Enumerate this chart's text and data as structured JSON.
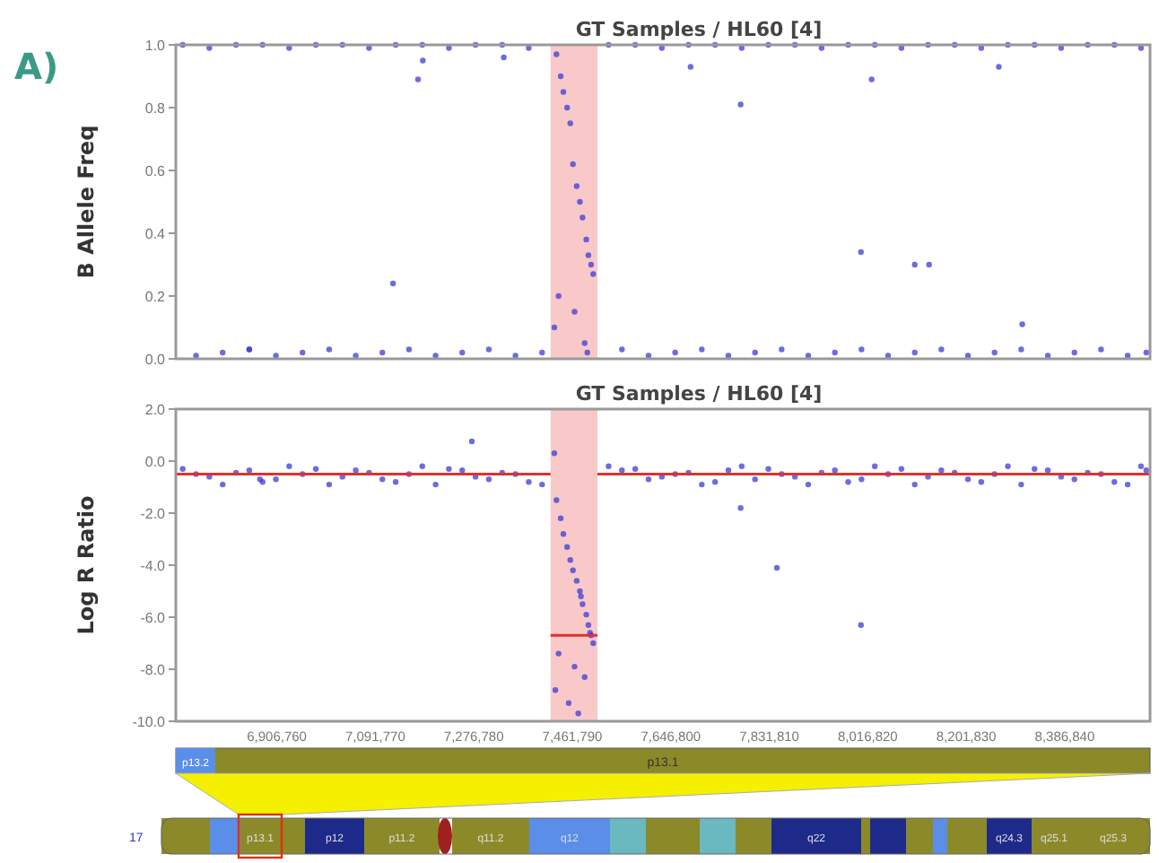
{
  "chart_data": [
    {
      "type": "scatter",
      "title": "GT Samples / HL60 [4]",
      "ylabel": "B Allele Freq",
      "annotations": [
        "A)"
      ],
      "xlim": [
        6717000,
        8547000
      ],
      "ylim": [
        0,
        1
      ],
      "yticks": [
        {
          "value": 0,
          "label": "0.0"
        },
        0.2,
        0.4,
        0.6,
        0.8,
        {
          "value": 1,
          "label": "1.0"
        }
      ],
      "tick_labels": "y",
      "marker": "circle",
      "bands": [
        {
          "axis": "x",
          "from": 7421000,
          "to": 7509000,
          "color": "#f9c9c9"
        }
      ],
      "series": [
        {
          "color": "#3b3bd6",
          "x": [
            6730000,
            6780000,
            6830000,
            6880000,
            6930000,
            6980000,
            7030000,
            7080000,
            7130000,
            7180000,
            7230000,
            7280000,
            7330000,
            7380000,
            7530000,
            7580000,
            7630000,
            7680000,
            7730000,
            7780000,
            7830000,
            7880000,
            7930000,
            7980000,
            8030000,
            8080000,
            8130000,
            8180000,
            8230000,
            8280000,
            8330000,
            8380000,
            8430000,
            8480000,
            8530000,
            6755000,
            6805000,
            6855000,
            6905000,
            6955000,
            7005000,
            7055000,
            7105000,
            7155000,
            7205000,
            7255000,
            7305000,
            7355000,
            7405000,
            7555000,
            7605000,
            7655000,
            7705000,
            7755000,
            7805000,
            7855000,
            7905000,
            7955000,
            8005000,
            8055000,
            8105000,
            8155000,
            8205000,
            8255000,
            8305000,
            8355000,
            8405000,
            8455000,
            8505000,
            8540000,
            6855000,
            7172000,
            7125000,
            7181000,
            7333000,
            7684000,
            8024000,
            8263000,
            7778000,
            8004000,
            8132000,
            8105000,
            8307000,
            7428000,
            7432000,
            7440000,
            7445000,
            7452000,
            7458000,
            7463000,
            7470000,
            7476000,
            7481000,
            7488000,
            7492000,
            7497000,
            7501000,
            7436000,
            7466000,
            7485000,
            7490000
          ],
          "values": [
            1,
            0.99,
            1,
            1,
            0.99,
            1,
            1,
            0.99,
            1,
            1,
            0.99,
            1,
            1,
            0.99,
            1,
            1,
            0.99,
            1,
            1,
            0.99,
            1,
            1,
            0.99,
            1,
            1,
            0.99,
            1,
            1,
            0.99,
            1,
            1,
            0.99,
            1,
            1,
            0.99,
            0.01,
            0.02,
            0.03,
            0.01,
            0.02,
            0.03,
            0.01,
            0.02,
            0.03,
            0.01,
            0.02,
            0.03,
            0.01,
            0.02,
            0.03,
            0.01,
            0.02,
            0.03,
            0.01,
            0.02,
            0.03,
            0.01,
            0.02,
            0.03,
            0.01,
            0.02,
            0.03,
            0.01,
            0.02,
            0.03,
            0.01,
            0.02,
            0.03,
            0.01,
            0.02,
            0.03,
            0.89,
            0.24,
            0.95,
            0.96,
            0.93,
            0.89,
            0.93,
            0.81,
            0.34,
            0.3,
            0.3,
            0.11,
            0.1,
            0.97,
            0.9,
            0.85,
            0.8,
            0.75,
            0.62,
            0.55,
            0.5,
            0.45,
            0.38,
            0.33,
            0.3,
            0.27,
            0.2,
            0.15,
            0.05,
            0.02
          ]
        }
      ]
    },
    {
      "type": "scatter",
      "title": "GT Samples / HL60 [4]",
      "ylabel": "Log R Ratio",
      "annotations": [
        "17",
        "p13.2",
        "p13.1",
        "p13.1",
        "p12",
        "p11.2",
        "q11.2",
        "q12",
        "q22",
        "q24.3",
        "q25.1",
        "q25.3"
      ],
      "xlim": [
        6717000,
        8547000
      ],
      "xticks": [
        {
          "value": 6906760,
          "label": "6,906,760"
        },
        {
          "value": 7091770,
          "label": "7,091,770"
        },
        {
          "value": 7276780,
          "label": "7,276,780"
        },
        {
          "value": 7461790,
          "label": "7,461,790"
        },
        {
          "value": 7646800,
          "label": "7,646,800"
        },
        {
          "value": 7831810,
          "label": "7,831,810"
        },
        {
          "value": 8016820,
          "label": "8,016,820"
        },
        {
          "value": 8201830,
          "label": "8,201,830"
        },
        {
          "value": 8386840,
          "label": "8,386,840"
        }
      ],
      "ylim": [
        -10,
        2
      ],
      "yticks": [
        {
          "value": -10,
          "label": "-10.0"
        },
        {
          "value": -8,
          "label": "-8.0"
        },
        {
          "value": -6,
          "label": "-6.0"
        },
        {
          "value": -4,
          "label": "-4.0"
        },
        {
          "value": -2,
          "label": "-2.0"
        },
        {
          "value": 0,
          "label": "0.0"
        },
        {
          "value": 2,
          "label": "2.0"
        }
      ],
      "marker": "circle",
      "bands": [
        {
          "axis": "x",
          "from": 7421000,
          "to": 7509000,
          "color": "#f9c9c9"
        }
      ],
      "series": [
        {
          "color": "#3b3bd6",
          "x": [
            6730000,
            6780000,
            6830000,
            6880000,
            6930000,
            6980000,
            7030000,
            7080000,
            7130000,
            7180000,
            7230000,
            7280000,
            7330000,
            7380000,
            7530000,
            7580000,
            7630000,
            7680000,
            7730000,
            7780000,
            7830000,
            7880000,
            7930000,
            7980000,
            8030000,
            8080000,
            8130000,
            8180000,
            8230000,
            8280000,
            8330000,
            8380000,
            8430000,
            8480000,
            8530000,
            6755000,
            6805000,
            6855000,
            6905000,
            6955000,
            7005000,
            7055000,
            7105000,
            7155000,
            7205000,
            7255000,
            7305000,
            7355000,
            7405000,
            7555000,
            7605000,
            7655000,
            7705000,
            7755000,
            7805000,
            7855000,
            7905000,
            7955000,
            8005000,
            8055000,
            8105000,
            8155000,
            8205000,
            8255000,
            8305000,
            8355000,
            8405000,
            8455000,
            8505000,
            8540000,
            6875000,
            7778000,
            7846000,
            8004000,
            7273000,
            7428000,
            7432000,
            7440000,
            7445000,
            7452000,
            7458000,
            7463000,
            7470000,
            7476000,
            7481000,
            7488000,
            7492000,
            7497000,
            7501000,
            7436000,
            7466000,
            7485000,
            7430000,
            7455000,
            7473000,
            7495000,
            7478000
          ],
          "values": [
            -0.3,
            -0.6,
            -0.45,
            -0.8,
            -0.2,
            -0.3,
            -0.6,
            -0.45,
            -0.8,
            -0.2,
            -0.3,
            -0.6,
            -0.45,
            -0.8,
            -0.2,
            -0.3,
            -0.6,
            -0.45,
            -0.8,
            -0.2,
            -0.3,
            -0.6,
            -0.45,
            -0.8,
            -0.2,
            -0.3,
            -0.6,
            -0.45,
            -0.8,
            -0.2,
            -0.3,
            -0.6,
            -0.45,
            -0.8,
            -0.2,
            -0.5,
            -0.9,
            -0.35,
            -0.7,
            -0.5,
            -0.9,
            -0.35,
            -0.7,
            -0.5,
            -0.9,
            -0.35,
            -0.7,
            -0.5,
            -0.9,
            -0.35,
            -0.7,
            -0.5,
            -0.9,
            -0.35,
            -0.7,
            -0.5,
            -0.9,
            -0.35,
            -0.7,
            -0.5,
            -0.9,
            -0.35,
            -0.7,
            -0.5,
            -0.9,
            -0.35,
            -0.7,
            -0.5,
            -0.9,
            -0.35,
            -0.7,
            -1.8,
            -4.1,
            -6.3,
            0.76,
            0.3,
            -1.5,
            -2.2,
            -2.8,
            -3.3,
            -3.8,
            -4.2,
            -4.6,
            -5,
            -5.5,
            -5.9,
            -6.3,
            -6.7,
            -7,
            -7.4,
            -7.9,
            -8.3,
            -8.8,
            -9.3,
            -9.7,
            -6.6,
            -5.2
          ]
        },
        {
          "type": "line",
          "color": "#e03030",
          "marker": "none",
          "x": [
            6717000,
            7421000
          ],
          "values": [
            -0.5,
            -0.5
          ]
        },
        {
          "type": "line",
          "color": "#e03030",
          "marker": "none",
          "x": [
            7421000,
            7509000
          ],
          "values": [
            -6.7,
            -6.7
          ]
        },
        {
          "type": "line",
          "color": "#e03030",
          "marker": "none",
          "x": [
            7509000,
            8547000
          ],
          "values": [
            -0.5,
            -0.5
          ]
        }
      ]
    }
  ]
}
